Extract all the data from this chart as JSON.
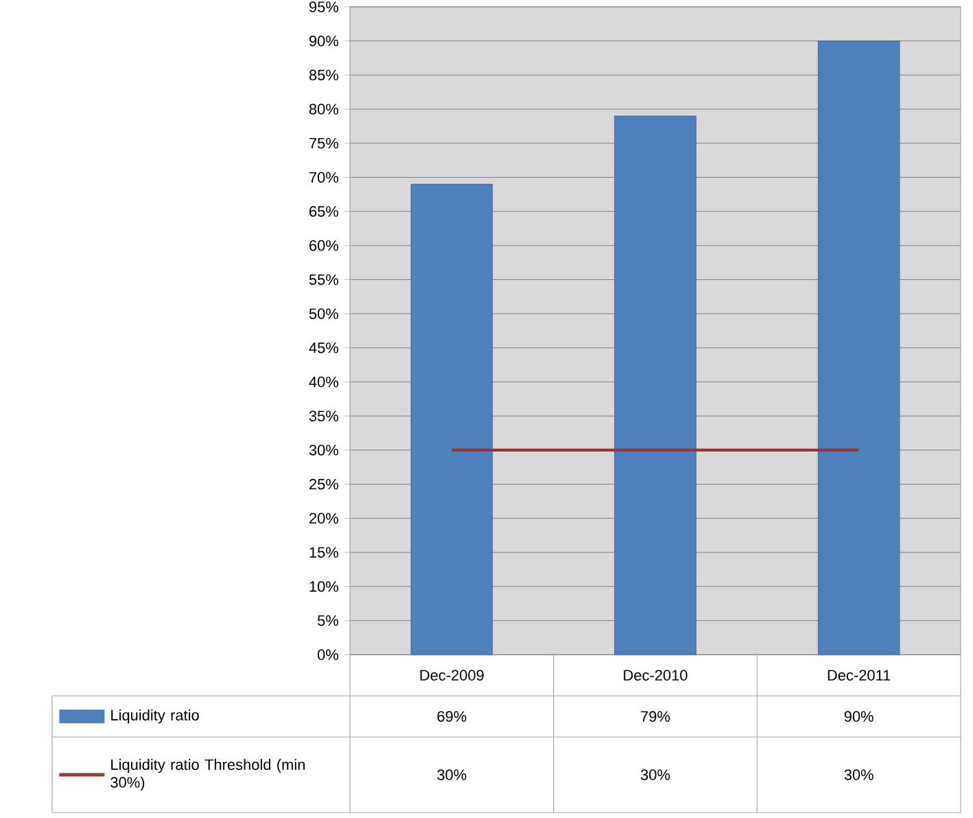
{
  "chart_data": {
    "type": "bar",
    "categories": [
      "Dec-2009",
      "Dec-2010",
      "Dec-2011"
    ],
    "series": [
      {
        "name": "Liquidity ratio",
        "color": "#4f81bd",
        "values": [
          69,
          79,
          90
        ],
        "value_labels": [
          "69%",
          "79%",
          "90%"
        ]
      },
      {
        "name": "Liquidity ratio Threshold (min 30%)",
        "type": "line",
        "color": "#953735",
        "values": [
          30,
          30,
          30
        ],
        "value_labels": [
          "30%",
          "30%",
          "30%"
        ]
      }
    ],
    "ylim": [
      0,
      95
    ],
    "yticks": [
      {
        "value": 0,
        "label": "0%"
      },
      {
        "value": 5,
        "label": "5%"
      },
      {
        "value": 10,
        "label": "10%"
      },
      {
        "value": 15,
        "label": "15%"
      },
      {
        "value": 20,
        "label": "20%"
      },
      {
        "value": 25,
        "label": "25%"
      },
      {
        "value": 30,
        "label": "30%"
      },
      {
        "value": 35,
        "label": "35%"
      },
      {
        "value": 40,
        "label": "40%"
      },
      {
        "value": 45,
        "label": "45%"
      },
      {
        "value": 50,
        "label": "50%"
      },
      {
        "value": 55,
        "label": "55%"
      },
      {
        "value": 60,
        "label": "60%"
      },
      {
        "value": 65,
        "label": "65%"
      },
      {
        "value": 70,
        "label": "70%"
      },
      {
        "value": 75,
        "label": "75%"
      },
      {
        "value": 80,
        "label": "80%"
      },
      {
        "value": 85,
        "label": "85%"
      },
      {
        "value": 90,
        "label": "90%"
      },
      {
        "value": 95,
        "label": "95%"
      }
    ],
    "grid": "y",
    "legend": "bottom"
  }
}
